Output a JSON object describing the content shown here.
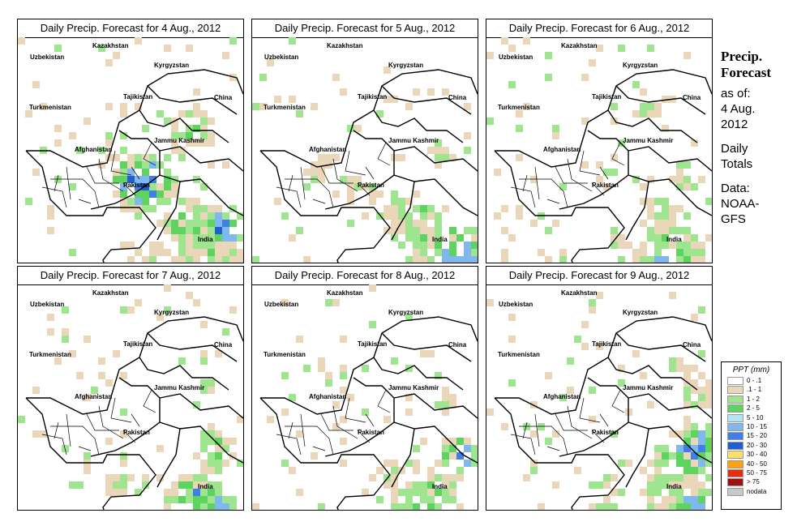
{
  "panels": [
    {
      "title": "Daily Precip. Forecast for  4 Aug., 2012",
      "seed": 4,
      "zones": [
        [
          150,
          175,
          45,
          5
        ],
        [
          120,
          130,
          30,
          2
        ],
        [
          210,
          230,
          40,
          3
        ],
        [
          250,
          300,
          60,
          3
        ],
        [
          230,
          260,
          40,
          2
        ],
        [
          170,
          280,
          60,
          1
        ],
        [
          210,
          110,
          40,
          2
        ],
        [
          250,
          230,
          30,
          5
        ]
      ]
    },
    {
      "title": "Daily Precip. Forecast for  5 Aug., 2012",
      "seed": 5,
      "zones": [
        [
          130,
          185,
          30,
          2
        ],
        [
          250,
          270,
          50,
          4
        ],
        [
          260,
          300,
          30,
          5
        ],
        [
          200,
          230,
          50,
          2
        ],
        [
          230,
          140,
          30,
          1
        ],
        [
          170,
          210,
          40,
          1
        ],
        [
          80,
          160,
          30,
          1
        ]
      ]
    },
    {
      "title": "Daily Precip. Forecast for  6 Aug., 2012",
      "seed": 6,
      "zones": [
        [
          220,
          270,
          55,
          3
        ],
        [
          250,
          290,
          35,
          4
        ],
        [
          210,
          210,
          30,
          2
        ],
        [
          240,
          170,
          30,
          1
        ],
        [
          160,
          250,
          30,
          1
        ],
        [
          190,
          90,
          30,
          1
        ]
      ]
    },
    {
      "title": "Daily Precip. Forecast for  7 Aug., 2012",
      "seed": 7,
      "zones": [
        [
          220,
          270,
          50,
          4
        ],
        [
          245,
          285,
          30,
          5
        ],
        [
          240,
          200,
          40,
          2
        ],
        [
          120,
          240,
          30,
          1
        ],
        [
          230,
          130,
          20,
          1
        ]
      ]
    },
    {
      "title": "Daily Precip. Forecast for  8 Aug., 2012",
      "seed": 8,
      "zones": [
        [
          250,
          210,
          30,
          5
        ],
        [
          210,
          270,
          55,
          3
        ],
        [
          160,
          230,
          30,
          1
        ],
        [
          230,
          140,
          30,
          1
        ]
      ]
    },
    {
      "title": "Daily Precip. Forecast for  9 Aug., 2012",
      "seed": 9,
      "zones": [
        [
          240,
          210,
          45,
          4
        ],
        [
          250,
          275,
          35,
          4
        ],
        [
          260,
          190,
          30,
          5
        ],
        [
          210,
          240,
          40,
          2
        ],
        [
          140,
          250,
          40,
          1
        ],
        [
          260,
          130,
          30,
          2
        ],
        [
          240,
          100,
          30,
          1
        ]
      ]
    }
  ],
  "labels": {
    "uzbekistan": "Uzbekistan",
    "kazakhstan": "Kazakhstan",
    "kyrgyzstan": "Kyrgyzstan",
    "tajikistan": "Tajikistan",
    "turkmenistan": "Turkmenistan",
    "china": "China",
    "afghanistan": "Afghanistan",
    "jammu_kashmir": "Jammu Kashmir",
    "pakistan": "Pakistan",
    "india": "India"
  },
  "side": {
    "title1": "Precip.",
    "title2": "Forecast",
    "asof1": "as of:",
    "asof2": "4 Aug.",
    "asof3": "2012",
    "totals1": "Daily",
    "totals2": "Totals",
    "data1": "Data:",
    "data2": "NOAA-",
    "data3": "GFS"
  },
  "legend": {
    "title": "PPT (mm)",
    "items": [
      {
        "label": "0 - .1",
        "color": "#ffffff"
      },
      {
        "label": ".1 - 1",
        "color": "#ead6b8"
      },
      {
        "label": "1 - 2",
        "color": "#9fe58f"
      },
      {
        "label": "2 - 5",
        "color": "#5fd35f"
      },
      {
        "label": "5 - 10",
        "color": "#b5e4f5"
      },
      {
        "label": "10 - 15",
        "color": "#7fb8ef"
      },
      {
        "label": "15 - 20",
        "color": "#3f7fe6"
      },
      {
        "label": "20 - 30",
        "color": "#1f5fd0"
      },
      {
        "label": "30 - 40",
        "color": "#ffe066"
      },
      {
        "label": "40 - 50",
        "color": "#ffa010"
      },
      {
        "label": "50 - 75",
        "color": "#e03010"
      },
      {
        "label": "> 75",
        "color": "#a01010"
      },
      {
        "label": "nodata",
        "color": "#c8c8c8"
      }
    ]
  }
}
